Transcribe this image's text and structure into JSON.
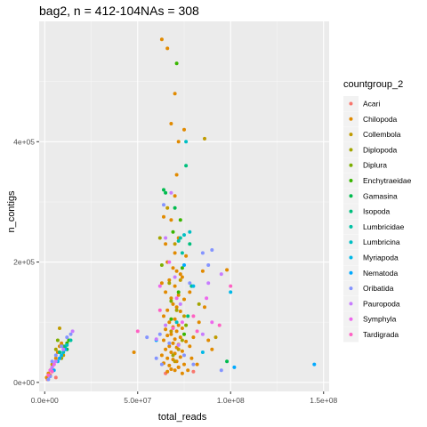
{
  "chart_data": {
    "type": "scatter",
    "title": "bag2, n = 412-104NAs = 308",
    "xlabel": "total_reads",
    "ylabel": "n_contigs",
    "xlim": [
      -3000000,
      153000000
    ],
    "ylim": [
      -15000,
      600000
    ],
    "x_ticks": [
      {
        "value": 0,
        "label": "0.0e+00"
      },
      {
        "value": 50000000,
        "label": "5.0e+07"
      },
      {
        "value": 100000000,
        "label": "1.0e+08"
      },
      {
        "value": 150000000,
        "label": "1.5e+08"
      }
    ],
    "y_ticks": [
      {
        "value": 0,
        "label": "0e+00"
      },
      {
        "value": 200000,
        "label": "2e+05"
      },
      {
        "value": 400000,
        "label": "4e+05"
      }
    ],
    "grid": true,
    "legend_title": "countgroup_2",
    "legend_position": "right",
    "series": [
      {
        "name": "Acari",
        "color": "#F8766D",
        "points": [
          [
            1500000,
            5000
          ],
          [
            3000000,
            12000
          ],
          [
            6000000,
            8000
          ],
          [
            65000000,
            15000
          ],
          [
            72000000,
            25000
          ],
          [
            80000000,
            18000
          ]
        ]
      },
      {
        "name": "Chilopoda",
        "color": "#E18A00",
        "points": [
          [
            63000000,
            570000
          ],
          [
            66000000,
            555000
          ],
          [
            70000000,
            480000
          ],
          [
            68000000,
            430000
          ],
          [
            75000000,
            420000
          ],
          [
            72000000,
            400000
          ],
          [
            71000000,
            345000
          ],
          [
            70000000,
            310000
          ],
          [
            64000000,
            275000
          ],
          [
            68000000,
            270000
          ],
          [
            72000000,
            240000
          ],
          [
            65000000,
            230000
          ],
          [
            70000000,
            215000
          ],
          [
            76000000,
            210000
          ],
          [
            66000000,
            200000
          ],
          [
            69000000,
            190000
          ],
          [
            71000000,
            185000
          ],
          [
            73000000,
            180000
          ],
          [
            74000000,
            175000
          ],
          [
            67000000,
            170000
          ],
          [
            63000000,
            165000
          ],
          [
            70000000,
            160000
          ],
          [
            65000000,
            150000
          ],
          [
            72000000,
            145000
          ],
          [
            68000000,
            140000
          ],
          [
            75000000,
            138000
          ],
          [
            69000000,
            130000
          ],
          [
            71000000,
            125000
          ],
          [
            66000000,
            120000
          ],
          [
            73000000,
            118000
          ],
          [
            64000000,
            110000
          ],
          [
            70000000,
            105000
          ],
          [
            67000000,
            100000
          ],
          [
            72000000,
            95000
          ],
          [
            69000000,
            92000
          ],
          [
            74000000,
            90000
          ],
          [
            65000000,
            88000
          ],
          [
            71000000,
            85000
          ],
          [
            68000000,
            80000
          ],
          [
            66000000,
            78000
          ],
          [
            73000000,
            75000
          ],
          [
            70000000,
            72000
          ],
          [
            64000000,
            70000
          ],
          [
            76000000,
            68000
          ],
          [
            69000000,
            65000
          ],
          [
            72000000,
            63000
          ],
          [
            67000000,
            60000
          ],
          [
            71000000,
            58000
          ],
          [
            65000000,
            55000
          ],
          [
            74000000,
            52000
          ],
          [
            68000000,
            50000
          ],
          [
            70000000,
            48000
          ],
          [
            63000000,
            45000
          ],
          [
            73000000,
            42000
          ],
          [
            66000000,
            40000
          ],
          [
            69000000,
            38000
          ],
          [
            71000000,
            35000
          ],
          [
            64000000,
            32000
          ],
          [
            75000000,
            30000
          ],
          [
            67000000,
            28000
          ],
          [
            72000000,
            25000
          ],
          [
            68000000,
            22000
          ],
          [
            70000000,
            20000
          ],
          [
            66000000,
            18000
          ],
          [
            74000000,
            15000
          ],
          [
            48000000,
            50000
          ],
          [
            78000000,
            60000
          ],
          [
            80000000,
            75000
          ],
          [
            83000000,
            100000
          ],
          [
            88000000,
            70000
          ],
          [
            98000000,
            187000
          ],
          [
            85000000,
            185000
          ],
          [
            90000000,
            55000
          ],
          [
            86000000,
            125000
          ],
          [
            78000000,
            150000
          ],
          [
            79000000,
            40000
          ],
          [
            82000000,
            30000
          ],
          [
            77000000,
            20000
          ],
          [
            3000000,
            20000
          ],
          [
            5000000,
            30000
          ],
          [
            6000000,
            40000
          ],
          [
            2000000,
            15000
          ],
          [
            8000000,
            60000
          ],
          [
            4000000,
            25000
          ],
          [
            7000000,
            50000
          ],
          [
            9000000,
            65000
          ],
          [
            1000000,
            8000
          ]
        ]
      },
      {
        "name": "Collembola",
        "color": "#C09B00",
        "points": [
          [
            66000000,
            290000
          ],
          [
            70000000,
            230000
          ],
          [
            73000000,
            170000
          ],
          [
            75000000,
            110000
          ],
          [
            68000000,
            85000
          ],
          [
            72000000,
            55000
          ],
          [
            86000000,
            405000
          ],
          [
            8000000,
            90000
          ],
          [
            10000000,
            45000
          ],
          [
            4000000,
            30000
          ],
          [
            92000000,
            75000
          ],
          [
            70000000,
            35000
          ]
        ]
      },
      {
        "name": "Diplopoda",
        "color": "#A3A500",
        "points": [
          [
            62000000,
            240000
          ],
          [
            67000000,
            165000
          ],
          [
            71000000,
            120000
          ],
          [
            74000000,
            70000
          ],
          [
            69000000,
            45000
          ],
          [
            83000000,
            130000
          ],
          [
            6000000,
            55000
          ],
          [
            9000000,
            40000
          ]
        ]
      },
      {
        "name": "Diplura",
        "color": "#7CAE00",
        "points": [
          [
            63000000,
            195000
          ],
          [
            68000000,
            135000
          ],
          [
            76000000,
            95000
          ],
          [
            10000000,
            60000
          ],
          [
            7000000,
            70000
          ]
        ]
      },
      {
        "name": "Enchytraeidae",
        "color": "#39B600",
        "points": [
          [
            71000000,
            530000
          ],
          [
            73000000,
            270000
          ],
          [
            69000000,
            250000
          ],
          [
            74000000,
            190000
          ],
          [
            72000000,
            150000
          ],
          [
            68000000,
            105000
          ],
          [
            75000000,
            80000
          ],
          [
            12000000,
            65000
          ],
          [
            13000000,
            70000
          ]
        ]
      },
      {
        "name": "Gamasina",
        "color": "#00BB4E",
        "points": [
          [
            64000000,
            320000
          ],
          [
            65000000,
            315000
          ],
          [
            70000000,
            290000
          ],
          [
            98000000,
            35000
          ],
          [
            12000000,
            55000
          ]
        ]
      },
      {
        "name": "Isopoda",
        "color": "#00BF7D",
        "points": [
          [
            76000000,
            360000
          ],
          [
            78000000,
            230000
          ],
          [
            79000000,
            160000
          ],
          [
            77000000,
            110000
          ],
          [
            8000000,
            50000
          ],
          [
            11000000,
            60000
          ]
        ]
      },
      {
        "name": "Lumbricidae",
        "color": "#00C1A3",
        "points": [
          [
            73000000,
            240000
          ],
          [
            72000000,
            235000
          ],
          [
            74000000,
            215000
          ],
          [
            14000000,
            70000
          ]
        ]
      },
      {
        "name": "Lumbricina",
        "color": "#00BFC4",
        "points": [
          [
            76000000,
            400000
          ],
          [
            78000000,
            250000
          ],
          [
            75000000,
            245000
          ],
          [
            71000000,
            100000
          ],
          [
            10000000,
            50000
          ],
          [
            12000000,
            62000
          ]
        ]
      },
      {
        "name": "Myriapoda",
        "color": "#00B8E7",
        "points": [
          [
            80000000,
            160000
          ],
          [
            7000000,
            35000
          ],
          [
            9000000,
            45000
          ],
          [
            100000000,
            150000
          ],
          [
            85000000,
            50000
          ]
        ]
      },
      {
        "name": "Nematoda",
        "color": "#00A9FF",
        "points": [
          [
            102000000,
            25000
          ],
          [
            5000000,
            20000
          ],
          [
            8000000,
            40000
          ],
          [
            11000000,
            55000
          ],
          [
            60000000,
            70000
          ],
          [
            145000000,
            30000
          ],
          [
            75000000,
            195000
          ]
        ]
      },
      {
        "name": "Oribatida",
        "color": "#8494FF",
        "points": [
          [
            64000000,
            295000
          ],
          [
            78000000,
            165000
          ],
          [
            85000000,
            215000
          ],
          [
            90000000,
            220000
          ],
          [
            62000000,
            80000
          ],
          [
            67000000,
            65000
          ],
          [
            75000000,
            45000
          ],
          [
            80000000,
            30000
          ],
          [
            95000000,
            20000
          ],
          [
            63000000,
            30000
          ],
          [
            4000000,
            35000
          ],
          [
            6000000,
            45000
          ],
          [
            9000000,
            60000
          ],
          [
            12000000,
            75000
          ],
          [
            14000000,
            80000
          ],
          [
            3000000,
            10000
          ],
          [
            2000000,
            5000
          ],
          [
            55000000,
            75000
          ],
          [
            88000000,
            195000
          ],
          [
            60000000,
            40000
          ]
        ]
      },
      {
        "name": "Pauropoda",
        "color": "#C77CFF",
        "points": [
          [
            68000000,
            315000
          ],
          [
            65000000,
            240000
          ],
          [
            70000000,
            175000
          ],
          [
            73000000,
            130000
          ],
          [
            65000000,
            95000
          ],
          [
            72000000,
            62000
          ],
          [
            4000000,
            25000
          ],
          [
            6000000,
            35000
          ],
          [
            10000000,
            55000
          ],
          [
            15000000,
            85000
          ],
          [
            88000000,
            165000
          ],
          [
            95000000,
            180000
          ],
          [
            60000000,
            72000
          ],
          [
            85000000,
            80000
          ]
        ]
      },
      {
        "name": "Symphyla",
        "color": "#ED68ED",
        "points": [
          [
            67000000,
            200000
          ],
          [
            71000000,
            140000
          ],
          [
            74000000,
            100000
          ],
          [
            3000000,
            20000
          ],
          [
            5000000,
            30000
          ],
          [
            87000000,
            140000
          ],
          [
            62000000,
            160000
          ],
          [
            90000000,
            100000
          ]
        ]
      },
      {
        "name": "Tardigrada",
        "color": "#FF61C3",
        "points": [
          [
            50000000,
            85000
          ],
          [
            62000000,
            120000
          ],
          [
            69000000,
            90000
          ],
          [
            2000000,
            12000
          ],
          [
            4000000,
            18000
          ],
          [
            100000000,
            160000
          ],
          [
            94000000,
            95000
          ],
          [
            80000000,
            110000
          ],
          [
            82000000,
            85000
          ]
        ]
      }
    ]
  }
}
